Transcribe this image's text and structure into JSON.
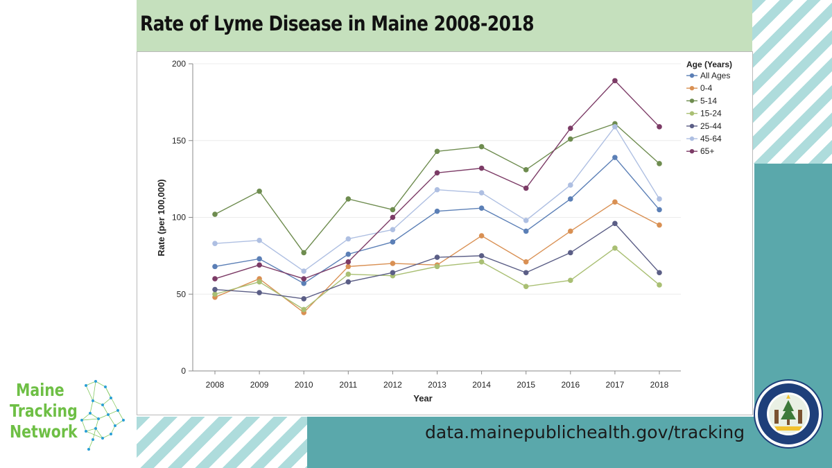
{
  "page": {
    "title": "Rate of Lyme Disease in Maine 2008-2018",
    "url": "data.mainepublichealth.gov/tracking",
    "logo_lines": [
      "Maine",
      "Tracking",
      "Network"
    ],
    "seal_text": "Department of Health and Human Services",
    "colors": {
      "title_band": "#c5e0bd",
      "teal": "#5aa8ab",
      "stripe": "#aedcdc",
      "logo_green": "#6ebf45"
    }
  },
  "chart_data": {
    "type": "line",
    "xlabel": "Year",
    "ylabel": "Rate (per 100,000)",
    "ylim": [
      0,
      200
    ],
    "yticks": [
      0,
      50,
      100,
      150,
      200
    ],
    "x": [
      2008,
      2009,
      2010,
      2011,
      2012,
      2013,
      2014,
      2015,
      2016,
      2017,
      2018
    ],
    "legend_title": "Age (Years)",
    "legend_position": "top-right",
    "grid": true,
    "series": [
      {
        "name": "All Ages",
        "color": "#5b7fb6",
        "values": [
          68,
          73,
          57,
          76,
          84,
          104,
          106,
          91,
          112,
          139,
          105
        ]
      },
      {
        "name": "0-4",
        "color": "#d99053",
        "values": [
          48,
          60,
          38,
          68,
          70,
          69,
          88,
          71,
          91,
          110,
          95
        ]
      },
      {
        "name": "5-14",
        "color": "#6e8c4f",
        "values": [
          102,
          117,
          77,
          112,
          105,
          143,
          146,
          131,
          151,
          161,
          135
        ]
      },
      {
        "name": "15-24",
        "color": "#a9bf73",
        "values": [
          50,
          58,
          40,
          63,
          62,
          68,
          71,
          55,
          59,
          80,
          56
        ]
      },
      {
        "name": "25-44",
        "color": "#5b5e86",
        "values": [
          53,
          51,
          47,
          58,
          64,
          74,
          75,
          64,
          77,
          96,
          64
        ]
      },
      {
        "name": "45-64",
        "color": "#aebfe2",
        "values": [
          83,
          85,
          65,
          86,
          92,
          118,
          116,
          98,
          121,
          159,
          112
        ]
      },
      {
        "name": "65+",
        "color": "#7c3b66",
        "values": [
          60,
          69,
          60,
          71,
          100,
          129,
          132,
          119,
          158,
          189,
          159
        ]
      }
    ]
  }
}
